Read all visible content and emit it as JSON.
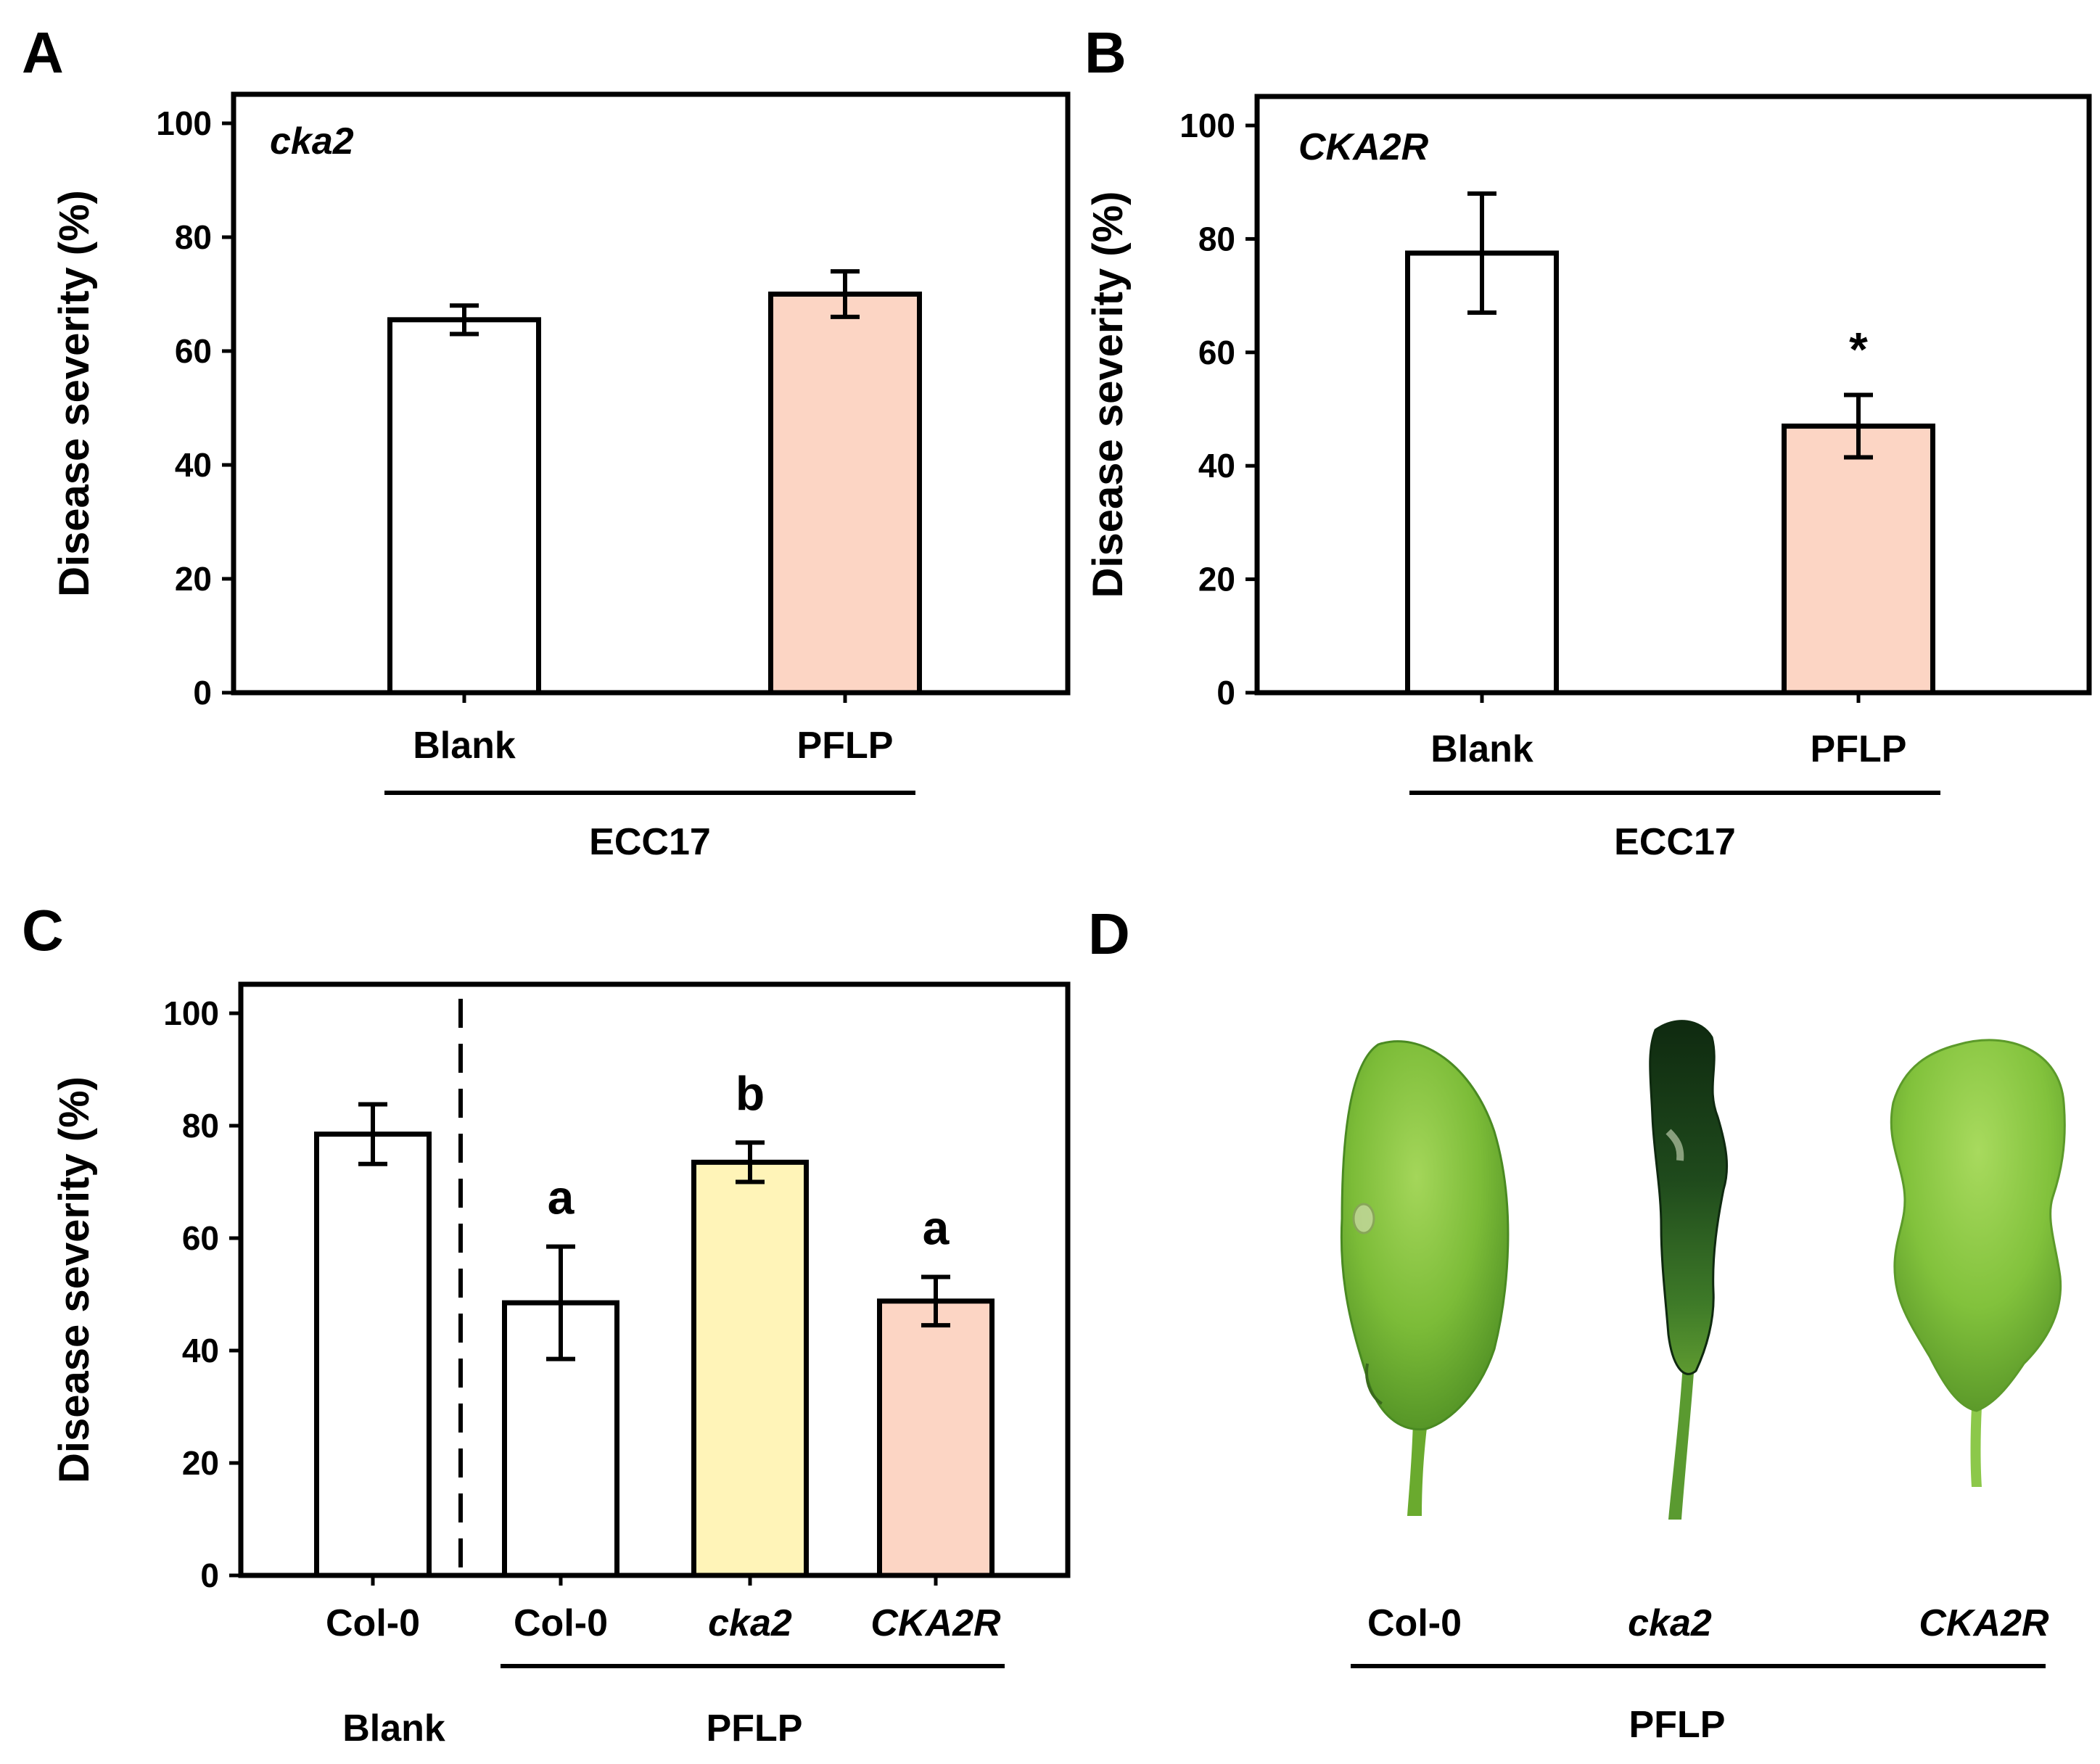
{
  "panels": {
    "a": {
      "letter": "A"
    },
    "b": {
      "letter": "B"
    },
    "c": {
      "letter": "C"
    },
    "d": {
      "letter": "D"
    }
  },
  "chart_data": [
    {
      "id": "A",
      "type": "bar",
      "title": "cka2",
      "ylabel": "Disease severity (%)",
      "ylim": [
        0,
        100
      ],
      "yticks": [
        0,
        20,
        40,
        60,
        80,
        100
      ],
      "categories": [
        "Blank",
        "PFLP"
      ],
      "values": [
        65.5,
        70
      ],
      "errors": [
        2.5,
        4
      ],
      "colors": [
        "#ffffff",
        "#fcd5c4"
      ],
      "group_label": "ECC17"
    },
    {
      "id": "B",
      "type": "bar",
      "title": "CKA2R",
      "ylabel": "Disease severity (%)",
      "ylim": [
        0,
        100
      ],
      "yticks": [
        0,
        20,
        40,
        60,
        80,
        100
      ],
      "categories": [
        "Blank",
        "PFLP"
      ],
      "values": [
        77.5,
        47
      ],
      "errors": [
        10.5,
        5.5
      ],
      "colors": [
        "#ffffff",
        "#fcd5c4"
      ],
      "annotations": [
        "",
        "*"
      ],
      "group_label": "ECC17"
    },
    {
      "id": "C",
      "type": "bar",
      "ylabel": "Disease severity (%)",
      "ylim": [
        0,
        100
      ],
      "yticks": [
        0,
        20,
        40,
        60,
        80,
        100
      ],
      "categories": [
        "Col-0",
        "Col-0",
        "cka2",
        "CKA2R"
      ],
      "values": [
        78.5,
        48.5,
        73.5,
        48.8
      ],
      "errors": [
        5.3,
        10,
        3.5,
        4.3
      ],
      "colors": [
        "#ffffff",
        "#ffffff",
        "#fff4b8",
        "#fcd5c4"
      ],
      "annotations": [
        "",
        "a",
        "b",
        "a"
      ],
      "groups": [
        "Blank",
        "PFLP"
      ]
    }
  ],
  "photo": {
    "labels": [
      "Col-0",
      "cka2",
      "CKA2R"
    ],
    "group_label": "PFLP",
    "colors": {
      "leaf_light": "#8dc63f",
      "leaf_mid": "#6aaa2e",
      "leaf_dark": "#4a8a22",
      "diseased": "#1f4a1c",
      "diseased_dark": "#0f2a10"
    }
  }
}
